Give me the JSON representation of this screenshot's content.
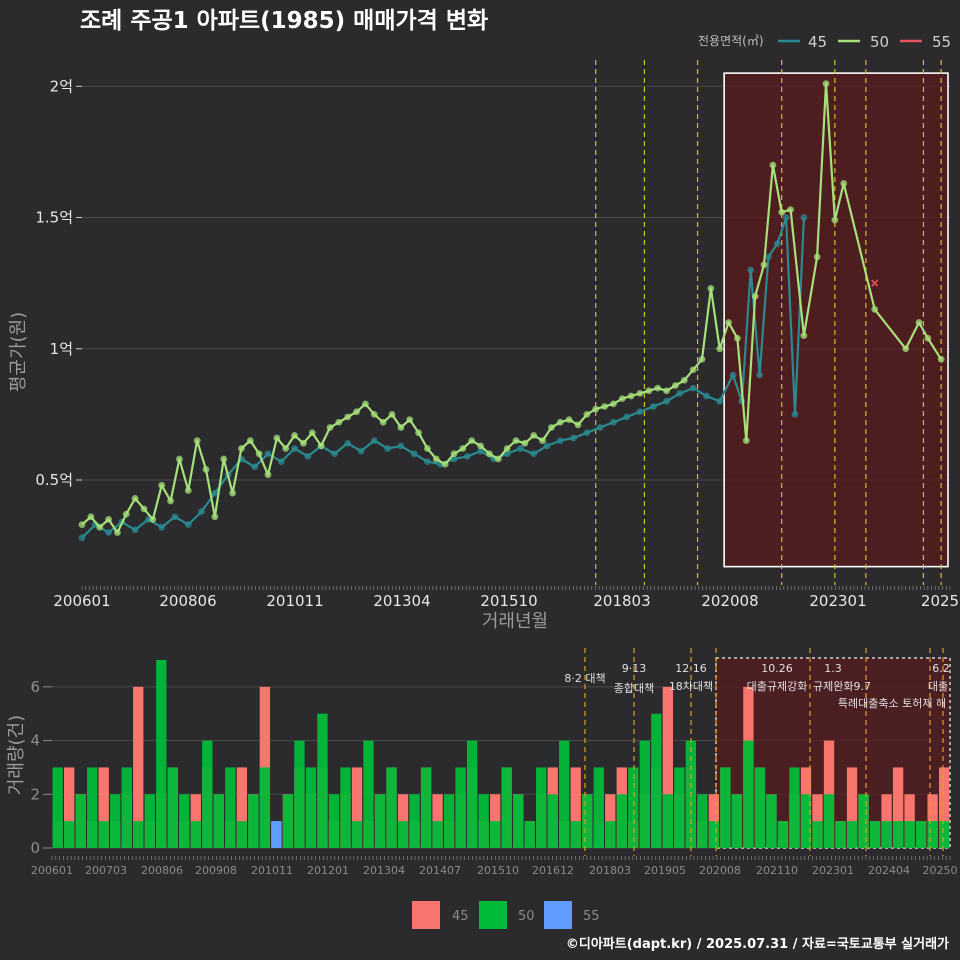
{
  "title": "조례 주공1 아파트(1985) 매매가격 변화",
  "copyright": "©디아파트(dapt.kr) / 2025.07.31 / 자료=국토교통부 실거래가",
  "colors": {
    "s45": "#2a8a8f",
    "s50": "#a6e07a",
    "s55": "#e0545a",
    "b45": "#f8766d",
    "b50": "#00ba38",
    "b55": "#619cff",
    "policy": "#d4c020",
    "zone": "#5a1a1c"
  },
  "legend": {
    "title": "전용면적(㎡)",
    "items": [
      "45",
      "50",
      "55"
    ]
  },
  "bar_legend": {
    "items": [
      "45",
      "50",
      "55"
    ]
  },
  "chart_data": [
    {
      "type": "line",
      "title": "조례 주공1 아파트(1985) 매매가격 변화",
      "xlabel": "거래년월",
      "ylabel": "평균가(원)",
      "x_ticks": [
        "200601",
        "200806",
        "201011",
        "201304",
        "201510",
        "201803",
        "202008",
        "202301",
        "2025"
      ],
      "y_ticks": [
        "0.5억",
        "1억",
        "1.5억",
        "2억"
      ],
      "y_tick_values": [
        5000,
        10000,
        15000,
        20000
      ],
      "ylim": [
        1000,
        21000
      ],
      "x_range": [
        2006.0,
        2025.6
      ],
      "series": [
        {
          "name": "45",
          "points": [
            [
              2006.0,
              2800
            ],
            [
              2006.3,
              3300
            ],
            [
              2006.6,
              3000
            ],
            [
              2006.9,
              3400
            ],
            [
              2007.2,
              3100
            ],
            [
              2007.5,
              3500
            ],
            [
              2007.8,
              3200
            ],
            [
              2008.1,
              3600
            ],
            [
              2008.4,
              3300
            ],
            [
              2008.7,
              3800
            ],
            [
              2009.0,
              4500
            ],
            [
              2009.3,
              5200
            ],
            [
              2009.6,
              5800
            ],
            [
              2009.9,
              5500
            ],
            [
              2010.2,
              6000
            ],
            [
              2010.5,
              5700
            ],
            [
              2010.8,
              6200
            ],
            [
              2011.1,
              5900
            ],
            [
              2011.4,
              6300
            ],
            [
              2011.7,
              6000
            ],
            [
              2012.0,
              6400
            ],
            [
              2012.3,
              6100
            ],
            [
              2012.6,
              6500
            ],
            [
              2012.9,
              6200
            ],
            [
              2013.2,
              6300
            ],
            [
              2013.5,
              6000
            ],
            [
              2013.8,
              5700
            ],
            [
              2014.1,
              5600
            ],
            [
              2014.4,
              5800
            ],
            [
              2014.7,
              5900
            ],
            [
              2015.0,
              6100
            ],
            [
              2015.3,
              5800
            ],
            [
              2015.6,
              6000
            ],
            [
              2015.9,
              6200
            ],
            [
              2016.2,
              6000
            ],
            [
              2016.5,
              6300
            ],
            [
              2016.8,
              6500
            ],
            [
              2017.1,
              6600
            ],
            [
              2017.4,
              6800
            ],
            [
              2017.7,
              7000
            ],
            [
              2018.0,
              7200
            ],
            [
              2018.3,
              7400
            ],
            [
              2018.6,
              7600
            ],
            [
              2018.9,
              7800
            ],
            [
              2019.2,
              8000
            ],
            [
              2019.5,
              8300
            ],
            [
              2019.8,
              8500
            ],
            [
              2020.1,
              8200
            ],
            [
              2020.4,
              8000
            ],
            [
              2020.7,
              9000
            ],
            [
              2020.9,
              8000
            ],
            [
              2021.1,
              13000
            ],
            [
              2021.3,
              9000
            ],
            [
              2021.5,
              13500
            ],
            [
              2021.7,
              14000
            ],
            [
              2021.9,
              15000
            ],
            [
              2022.1,
              7500
            ],
            [
              2022.3,
              15000
            ]
          ]
        },
        {
          "name": "50",
          "points": [
            [
              2006.0,
              3300
            ],
            [
              2006.2,
              3600
            ],
            [
              2006.4,
              3200
            ],
            [
              2006.6,
              3500
            ],
            [
              2006.8,
              3000
            ],
            [
              2007.0,
              3700
            ],
            [
              2007.2,
              4300
            ],
            [
              2007.4,
              3900
            ],
            [
              2007.6,
              3500
            ],
            [
              2007.8,
              4800
            ],
            [
              2008.0,
              4200
            ],
            [
              2008.2,
              5800
            ],
            [
              2008.4,
              4600
            ],
            [
              2008.6,
              6500
            ],
            [
              2008.8,
              5400
            ],
            [
              2009.0,
              3600
            ],
            [
              2009.2,
              5800
            ],
            [
              2009.4,
              4500
            ],
            [
              2009.6,
              6200
            ],
            [
              2009.8,
              6500
            ],
            [
              2010.0,
              6000
            ],
            [
              2010.2,
              5200
            ],
            [
              2010.4,
              6600
            ],
            [
              2010.6,
              6200
            ],
            [
              2010.8,
              6700
            ],
            [
              2011.0,
              6400
            ],
            [
              2011.2,
              6800
            ],
            [
              2011.4,
              6300
            ],
            [
              2011.6,
              7000
            ],
            [
              2011.8,
              7200
            ],
            [
              2012.0,
              7400
            ],
            [
              2012.2,
              7600
            ],
            [
              2012.4,
              7900
            ],
            [
              2012.6,
              7500
            ],
            [
              2012.8,
              7200
            ],
            [
              2013.0,
              7500
            ],
            [
              2013.2,
              7000
            ],
            [
              2013.4,
              7300
            ],
            [
              2013.6,
              6800
            ],
            [
              2013.8,
              6200
            ],
            [
              2014.0,
              5800
            ],
            [
              2014.2,
              5600
            ],
            [
              2014.4,
              6000
            ],
            [
              2014.6,
              6200
            ],
            [
              2014.8,
              6500
            ],
            [
              2015.0,
              6300
            ],
            [
              2015.2,
              6000
            ],
            [
              2015.4,
              5800
            ],
            [
              2015.6,
              6200
            ],
            [
              2015.8,
              6500
            ],
            [
              2016.0,
              6400
            ],
            [
              2016.2,
              6700
            ],
            [
              2016.4,
              6500
            ],
            [
              2016.6,
              7000
            ],
            [
              2016.8,
              7200
            ],
            [
              2017.0,
              7300
            ],
            [
              2017.2,
              7100
            ],
            [
              2017.4,
              7500
            ],
            [
              2017.6,
              7700
            ],
            [
              2017.8,
              7800
            ],
            [
              2018.0,
              7900
            ],
            [
              2018.2,
              8100
            ],
            [
              2018.4,
              8200
            ],
            [
              2018.6,
              8300
            ],
            [
              2018.8,
              8400
            ],
            [
              2019.0,
              8500
            ],
            [
              2019.2,
              8400
            ],
            [
              2019.4,
              8600
            ],
            [
              2019.6,
              8800
            ],
            [
              2019.8,
              9200
            ],
            [
              2020.0,
              9600
            ],
            [
              2020.2,
              12300
            ],
            [
              2020.4,
              10000
            ],
            [
              2020.6,
              11000
            ],
            [
              2020.8,
              10400
            ],
            [
              2021.0,
              6500
            ],
            [
              2021.2,
              12000
            ],
            [
              2021.4,
              13200
            ],
            [
              2021.6,
              17000
            ],
            [
              2021.8,
              15200
            ],
            [
              2022.0,
              15300
            ],
            [
              2022.3,
              10500
            ],
            [
              2022.6,
              13500
            ],
            [
              2022.8,
              20100
            ],
            [
              2023.0,
              14900
            ],
            [
              2023.2,
              16300
            ],
            [
              2023.9,
              11500
            ],
            [
              2024.6,
              10000
            ],
            [
              2024.9,
              11000
            ],
            [
              2025.1,
              10400
            ],
            [
              2025.4,
              9600
            ]
          ]
        },
        {
          "name": "55",
          "points": [
            [
              2023.9,
              12500
            ]
          ]
        }
      ],
      "highlight_zone": {
        "from": 2020.5,
        "to": 2025.6,
        "ymin": 1700,
        "ymax": 20500
      },
      "policy_lines": [
        2017.6,
        2018.7,
        2019.9,
        2021.8,
        2023.0,
        2023.7,
        2025.0,
        2025.4
      ]
    },
    {
      "type": "bar",
      "ylabel": "거래량(건)",
      "x_ticks": [
        "200601",
        "200703",
        "200806",
        "200908",
        "201011",
        "201201",
        "201304",
        "201407",
        "201510",
        "201612",
        "201803",
        "201905",
        "202008",
        "202110",
        "202301",
        "202404",
        "20250"
      ],
      "y_ticks": [
        "0",
        "2",
        "4",
        "6"
      ],
      "y_tick_values": [
        0,
        2,
        4,
        6
      ],
      "ylim": [
        0,
        7
      ],
      "x_range": [
        2006.0,
        2025.6
      ],
      "max_bar": 7,
      "series": [
        {
          "name": "45",
          "values": [
            1,
            3,
            2,
            1,
            3,
            1,
            2,
            6,
            1,
            2,
            3,
            1,
            2,
            3,
            2,
            1,
            3,
            2,
            6,
            1,
            2,
            3,
            2,
            3,
            1,
            2,
            3,
            1,
            2,
            3,
            2,
            1,
            3,
            2,
            1,
            2,
            3,
            1,
            2,
            3,
            2,
            1,
            2,
            3,
            1,
            3,
            2,
            1,
            2,
            3,
            1,
            2,
            3,
            6,
            2,
            3,
            1,
            2,
            3,
            2,
            6,
            3,
            2,
            1,
            2,
            3,
            2,
            4,
            1,
            3,
            2,
            1,
            2,
            3,
            2,
            1,
            2,
            3
          ]
        },
        {
          "name": "50",
          "values": [
            3,
            1,
            2,
            3,
            1,
            2,
            3,
            1,
            2,
            7,
            3,
            2,
            1,
            4,
            2,
            3,
            1,
            2,
            3,
            1,
            2,
            4,
            3,
            5,
            2,
            3,
            1,
            4,
            2,
            3,
            1,
            2,
            3,
            1,
            2,
            3,
            4,
            2,
            1,
            3,
            2,
            1,
            3,
            2,
            4,
            1,
            2,
            3,
            1,
            2,
            3,
            4,
            5,
            2,
            3,
            4,
            2,
            1,
            3,
            2,
            4,
            3,
            2,
            1,
            3,
            2,
            1,
            2,
            1,
            1,
            2,
            1,
            1,
            1,
            1,
            1,
            1,
            1
          ]
        },
        {
          "name": "55",
          "values": [
            0,
            0,
            0,
            0,
            0,
            0,
            0,
            0,
            0,
            0,
            0,
            0,
            0,
            0,
            0,
            0,
            0,
            0,
            0,
            1,
            0,
            0,
            0,
            0,
            0,
            0,
            0,
            0,
            0,
            0,
            0,
            0,
            0,
            0,
            0,
            0,
            0,
            0,
            0,
            0,
            0,
            0,
            0,
            0,
            0,
            0,
            0,
            0,
            0,
            0,
            0,
            0,
            0,
            0,
            0,
            0,
            0,
            0,
            0,
            0,
            0,
            0,
            0,
            0,
            0,
            0,
            0,
            0,
            0,
            0,
            0,
            0,
            0,
            0,
            0,
            0,
            0,
            0
          ]
        }
      ],
      "policies": [
        {
          "date": "8.2",
          "name": "8·2 대책",
          "x": 2017.6
        },
        {
          "date": "9.13",
          "name": "9·13 종합대책",
          "x": 2018.7
        },
        {
          "date": "12.16",
          "name": "12·16 18차대책",
          "x": 2019.9
        },
        {
          "date": "10.26",
          "name": "10.26 대출규제강화",
          "x": 2021.8
        },
        {
          "date": "1.3",
          "name": "1.3 규제완화",
          "x": 2023.0
        },
        {
          "date": "9.7",
          "name": "9.7 특례대출축소 토허제 해",
          "x": 2023.7
        },
        {
          "date": "6.2",
          "name": "6.2 대출",
          "x": 2025.4
        }
      ]
    }
  ],
  "policy_labels": {
    "p1": "8·2 대책",
    "p2a": "9·13",
    "p2b": "종합대책",
    "p3a": "12·16",
    "p3b": "18차대책",
    "p4a": "10.26",
    "p4b": "대출규제강화",
    "p5a": "1.3",
    "p5b": "규제완화9.7",
    "p6": "특례대출축소 토허제 해",
    "p7a": "6.2",
    "p7b": "대출"
  }
}
